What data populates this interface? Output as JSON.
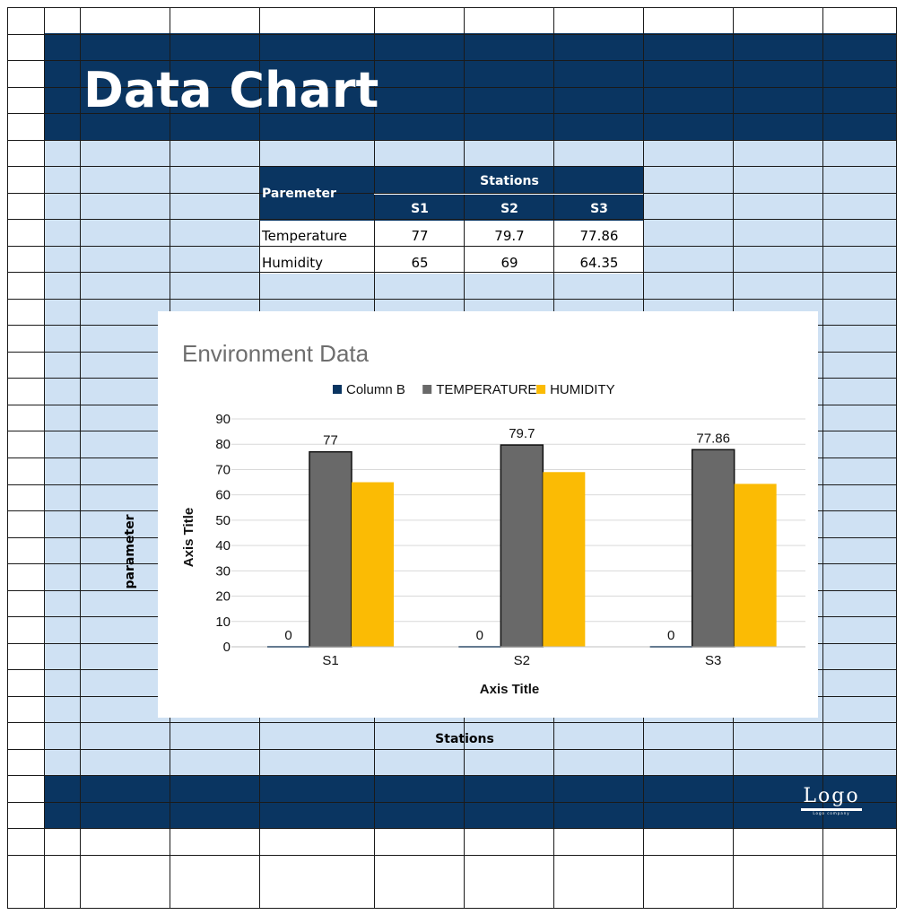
{
  "page": {
    "title": "Data Chart",
    "side_label": "parameter",
    "bottom_label": "Stations",
    "logo_text": "Logo",
    "logo_subtext": "Logo company"
  },
  "colors": {
    "navy": "#0a3561",
    "light_blue": "#cfe1f3",
    "grid_line": "#1a1a1a",
    "series_column_b": "#0a3561",
    "series_temperature": "#696969",
    "series_humidity": "#fbbb04"
  },
  "table": {
    "param_header": "Paremeter",
    "group_header": "Stations",
    "columns": [
      "S1",
      "S2",
      "S3"
    ],
    "rows": [
      {
        "label": "Temperature",
        "values": [
          "77",
          "79.7",
          "77.86"
        ]
      },
      {
        "label": "Humidity",
        "values": [
          "65",
          "69",
          "64.35"
        ]
      }
    ]
  },
  "chart_data": {
    "type": "bar",
    "title": "Environment Data",
    "xlabel": "Axis Title",
    "ylabel": "Axis Title",
    "categories": [
      "S1",
      "S2",
      "S3"
    ],
    "ylim": [
      0,
      90
    ],
    "yticks": [
      0,
      10,
      20,
      30,
      40,
      50,
      60,
      70,
      80,
      90
    ],
    "grid": true,
    "legend_position": "top",
    "series": [
      {
        "name": "Column B",
        "values": [
          0,
          0,
          0
        ],
        "labels": [
          "0",
          "0",
          "0"
        ],
        "color": "#0a3561"
      },
      {
        "name": "TEMPERATURE",
        "values": [
          77,
          79.7,
          77.86
        ],
        "labels": [
          "77",
          "79.7",
          "77.86"
        ],
        "color": "#696969"
      },
      {
        "name": "HUMIDITY",
        "values": [
          65,
          69,
          64.35
        ],
        "labels": [],
        "color": "#fbbb04"
      }
    ]
  }
}
